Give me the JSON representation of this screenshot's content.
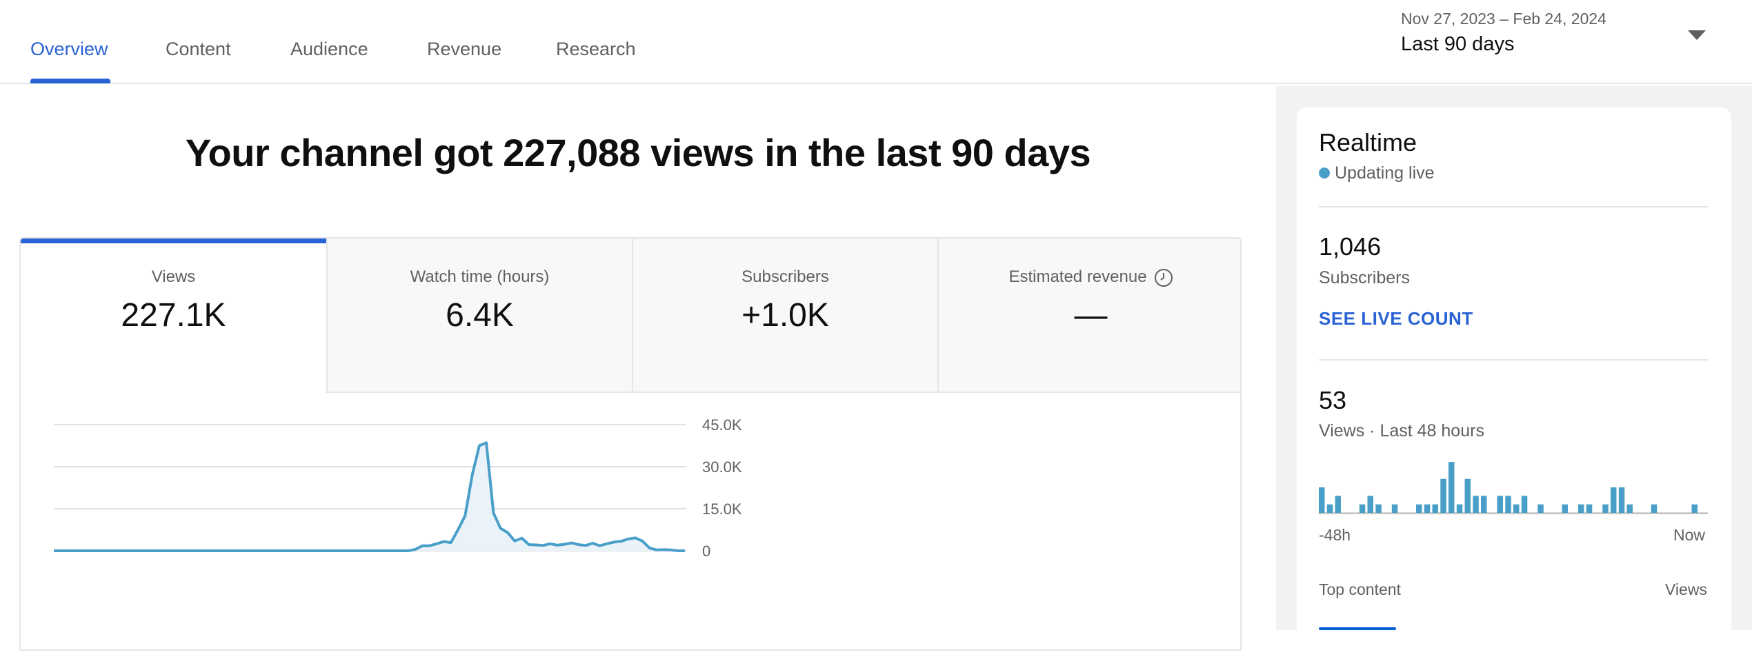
{
  "nav": {
    "tabs": [
      {
        "label": "Overview",
        "active": true
      },
      {
        "label": "Content",
        "active": false
      },
      {
        "label": "Audience",
        "active": false
      },
      {
        "label": "Revenue",
        "active": false
      },
      {
        "label": "Research",
        "active": false
      }
    ]
  },
  "date_picker": {
    "range": "Nov 27, 2023 – Feb 24, 2024",
    "label": "Last 90 days",
    "icon": "caret-down-icon"
  },
  "headline": "Your channel got 227,088 views in the last 90 days",
  "metrics": [
    {
      "label": "Views",
      "value": "227.1K",
      "active": true
    },
    {
      "label": "Watch time (hours)",
      "value": "6.4K",
      "active": false
    },
    {
      "label": "Subscribers",
      "value": "+1.0K",
      "active": false
    },
    {
      "label": "Estimated revenue",
      "value": "—",
      "active": false,
      "icon": "clock-icon"
    }
  ],
  "chart_data": {
    "type": "area",
    "ylim": [
      0,
      45000
    ],
    "y_ticks": [
      "45.0K",
      "30.0K",
      "15.0K",
      "0"
    ],
    "y_tick_values": [
      45000,
      30000,
      15000,
      0
    ],
    "x": [
      1,
      2,
      3,
      4,
      5,
      6,
      7,
      8,
      9,
      10,
      11,
      12,
      13,
      14,
      15,
      16,
      17,
      18,
      19,
      20,
      21,
      22,
      23,
      24,
      25,
      26,
      27,
      28,
      29,
      30,
      31,
      32,
      33,
      34,
      35,
      36,
      37,
      38,
      39,
      40,
      41,
      42,
      43,
      44,
      45,
      46,
      47,
      48,
      49,
      50,
      51,
      52,
      53,
      54,
      55,
      56,
      57,
      58,
      59,
      60,
      61,
      62,
      63,
      64,
      65,
      66,
      67,
      68,
      69,
      70,
      71,
      72,
      73,
      74,
      75,
      76,
      77,
      78,
      79,
      80,
      81,
      82,
      83,
      84,
      85,
      86,
      87,
      88,
      89,
      90
    ],
    "values": [
      0,
      0,
      0,
      0,
      0,
      0,
      0,
      0,
      0,
      0,
      0,
      0,
      0,
      0,
      0,
      0,
      0,
      0,
      0,
      0,
      0,
      0,
      0,
      0,
      0,
      0,
      0,
      0,
      0,
      0,
      0,
      0,
      0,
      0,
      0,
      0,
      0,
      0,
      0,
      0,
      0,
      0,
      0,
      0,
      0,
      0,
      0,
      0,
      0,
      0,
      0,
      500,
      1800,
      1800,
      2500,
      3300,
      2900,
      7500,
      12500,
      27000,
      37500,
      38500,
      13500,
      8000,
      6500,
      3500,
      4500,
      2200,
      2100,
      1900,
      2500,
      2000,
      2300,
      2800,
      2200,
      1900,
      2700,
      1800,
      2500,
      3100,
      3400,
      4200,
      4600,
      3500,
      1000,
      300,
      400,
      300,
      0,
      0
    ]
  },
  "realtime": {
    "title": "Realtime",
    "status": "Updating live",
    "subscribers_value": "1,046",
    "subscribers_label": "Subscribers",
    "live_count_link": "SEE LIVE COUNT",
    "views_value": "53",
    "views_label": "Views · Last 48 hours",
    "axis_start": "-48h",
    "axis_end": "Now",
    "hourly_views": [
      3,
      1,
      2,
      0,
      0,
      1,
      2,
      1,
      0,
      1,
      0,
      0,
      1,
      1,
      1,
      4,
      6,
      1,
      4,
      2,
      2,
      0,
      2,
      2,
      1,
      2,
      0,
      1,
      0,
      0,
      1,
      0,
      1,
      1,
      0,
      1,
      3,
      3,
      1,
      0,
      0,
      1,
      0,
      0,
      0,
      0,
      1,
      0
    ],
    "bar_color": "#4a9fc9",
    "top_content_label": "Top content",
    "top_content_metric": "Views"
  },
  "colors": {
    "accent": "#2962d4",
    "chart_line": "#4a9fc9",
    "chart_fill": "#e9f3f9"
  }
}
